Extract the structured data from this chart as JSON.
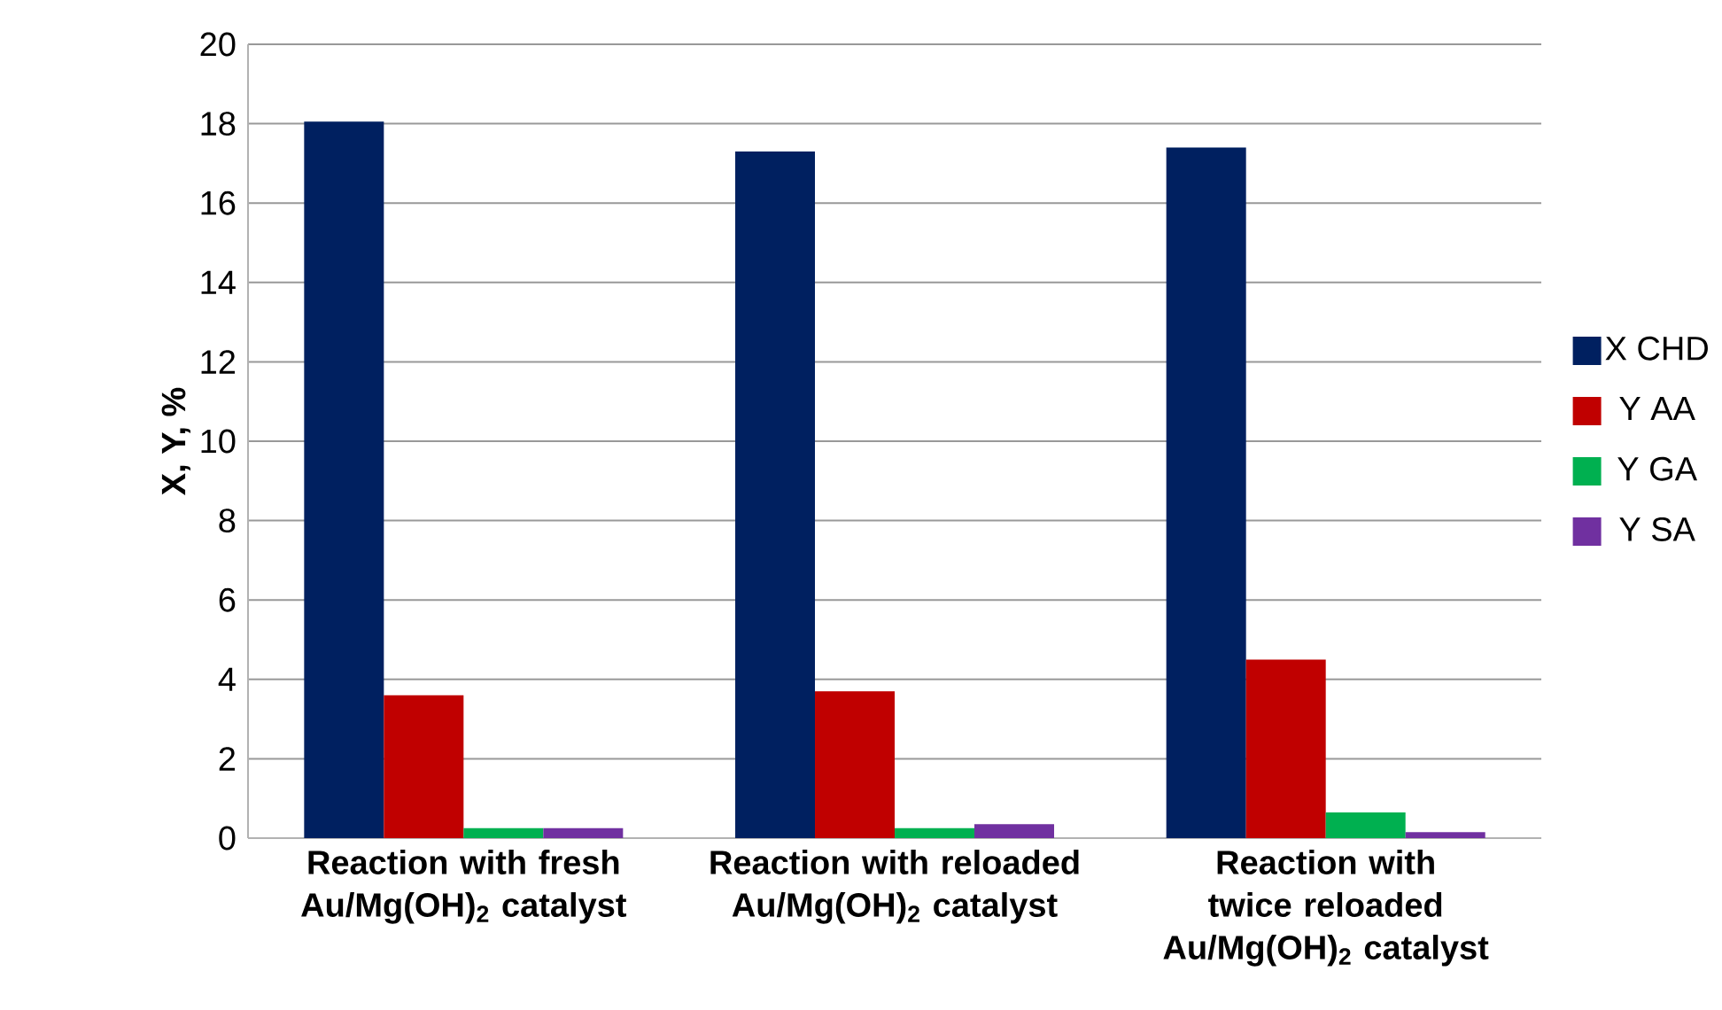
{
  "chart_data": {
    "type": "bar",
    "ylabel": "**X, Y, %**",
    "categories": [
      "**Reaction with fresh Au/Mg(OH)$_{2}$ catalyst**",
      "**Reaction with reloaded Au/Mg(OH)$_{2}$ catalyst**",
      "**Reaction with twice reloaded Au/Mg(OH)$_{2}$ catalyst**"
    ],
    "series": [
      {
        "name": "X CHD",
        "color": "#002060",
        "values": [
          18.05,
          17.3,
          17.4
        ]
      },
      {
        "name": "Y AA",
        "color": "#c00000",
        "values": [
          3.6,
          3.7,
          4.5
        ]
      },
      {
        "name": "Y GA",
        "color": "#00b050",
        "values": [
          0.25,
          0.25,
          0.65
        ]
      },
      {
        "name": "Y SA",
        "color": "#7030a0",
        "values": [
          0.25,
          0.35,
          0.15
        ]
      }
    ],
    "ylim": [
      0,
      20
    ],
    "yticks": [
      0,
      2,
      4,
      6,
      8,
      10,
      12,
      14,
      16,
      18,
      20
    ],
    "grid": "y",
    "legend": "right"
  }
}
